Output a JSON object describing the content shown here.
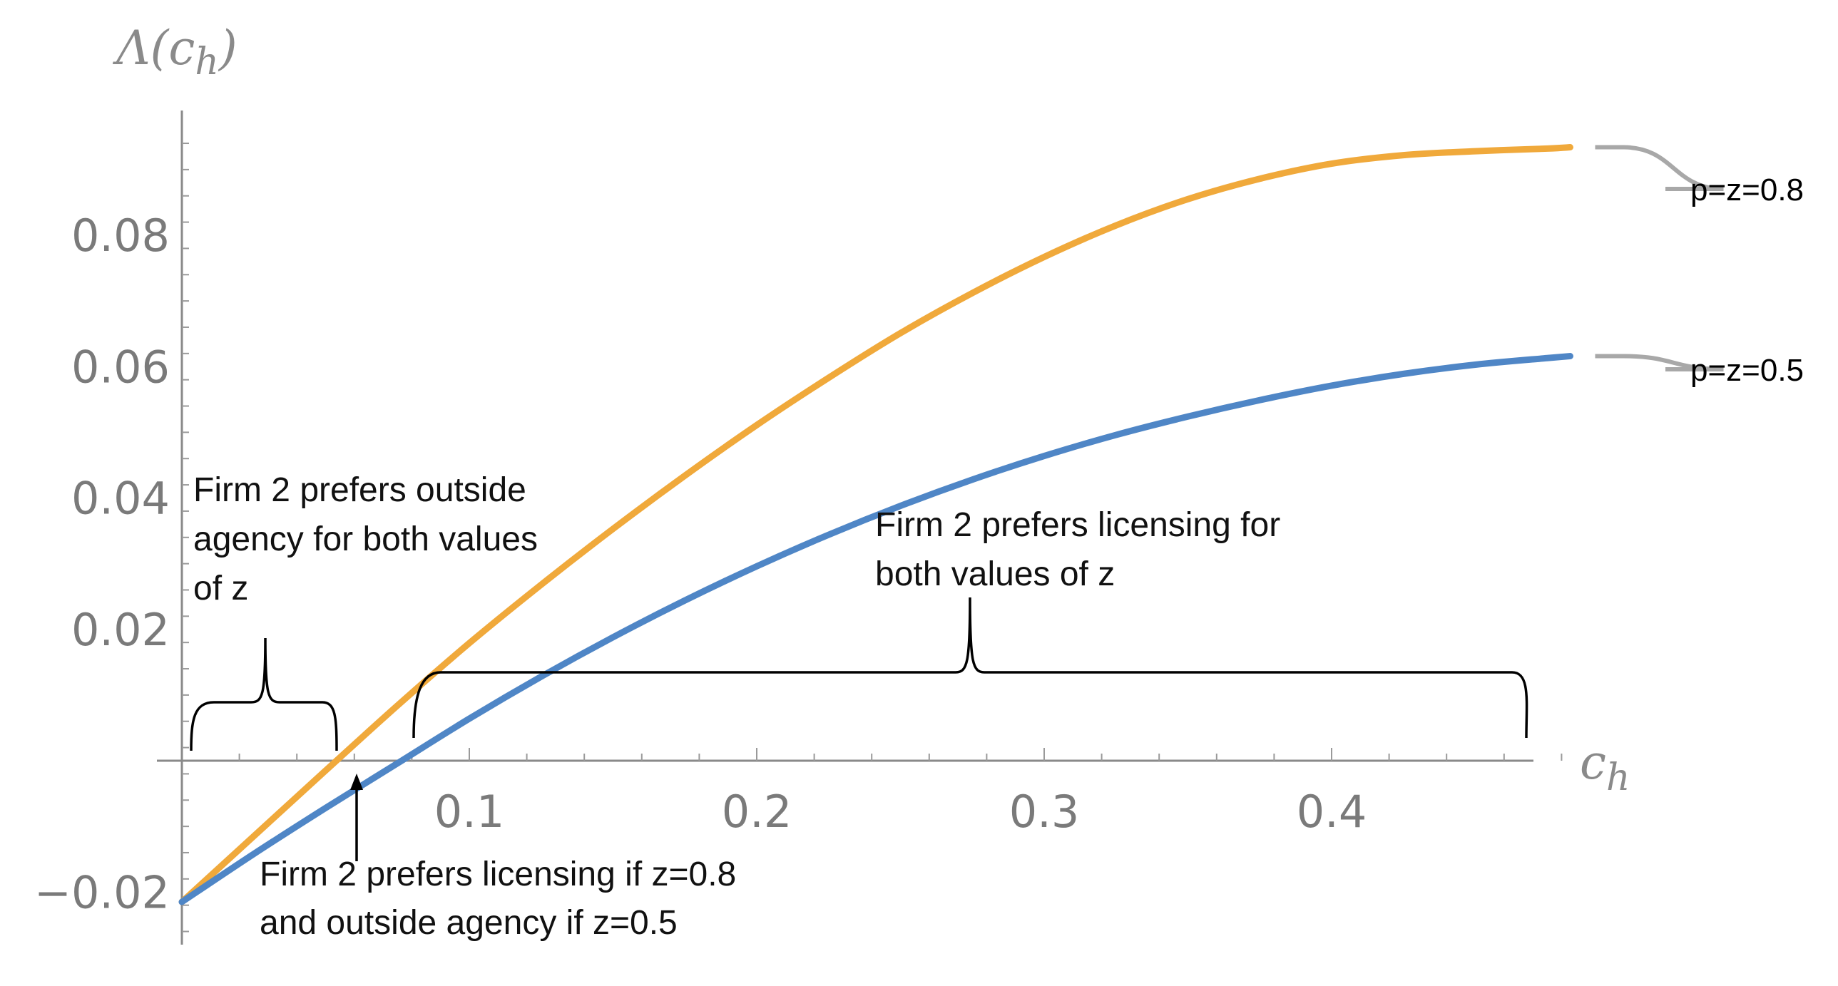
{
  "chart_data": {
    "type": "line",
    "title": "",
    "xlabel": {
      "main": "c",
      "sub": "h"
    },
    "ylabel": {
      "main": "Λ(c",
      "sub": "h",
      "close": ")"
    },
    "xlim": [
      0,
      0.49
    ],
    "ylim": [
      -0.028,
      0.098
    ],
    "x_ticks": [
      0.1,
      0.2,
      0.3,
      0.4
    ],
    "x_tick_labels": [
      "0.1",
      "0.2",
      "0.3",
      "0.4"
    ],
    "y_ticks": [
      -0.02,
      0.02,
      0.04,
      0.06,
      0.08
    ],
    "y_tick_labels": [
      "−0.02",
      "0.02",
      "0.04",
      "0.06",
      "0.08"
    ],
    "grid": false,
    "legend": "right",
    "series": [
      {
        "name": "p=z=0.8",
        "color": "#f0a93b",
        "x": [
          0,
          0.025,
          0.05,
          0.075,
          0.1,
          0.125,
          0.15,
          0.175,
          0.2,
          0.225,
          0.25,
          0.275,
          0.3,
          0.325,
          0.35,
          0.375,
          0.4,
          0.425,
          0.45,
          0.475,
          0.483
        ],
        "y": [
          -0.0215,
          -0.0115,
          -0.0015,
          0.0084,
          0.0179,
          0.0268,
          0.0353,
          0.0434,
          0.0511,
          0.0583,
          0.0651,
          0.0712,
          0.0767,
          0.0815,
          0.0855,
          0.0886,
          0.0909,
          0.0922,
          0.0928,
          0.0932,
          0.0934
        ]
      },
      {
        "name": "p=z=0.5",
        "color": "#4f86c6",
        "x": [
          0,
          0.025,
          0.05,
          0.075,
          0.1,
          0.125,
          0.15,
          0.175,
          0.2,
          0.225,
          0.25,
          0.275,
          0.3,
          0.325,
          0.35,
          0.375,
          0.4,
          0.425,
          0.45,
          0.475,
          0.483
        ],
        "y": [
          -0.0215,
          -0.0142,
          -0.0072,
          -0.0004,
          0.0064,
          0.0128,
          0.0188,
          0.0244,
          0.0296,
          0.0344,
          0.0388,
          0.0428,
          0.0464,
          0.0496,
          0.0524,
          0.0549,
          0.0571,
          0.0589,
          0.0603,
          0.0613,
          0.0616
        ]
      }
    ],
    "annotations": [
      {
        "lines": [
          "Firm 2 prefers outside",
          "agency for both values",
          "of z"
        ]
      },
      {
        "lines": [
          "Firm 2 prefers licensing for",
          "both values of z"
        ]
      },
      {
        "lines": [
          "Firm 2 prefers licensing if z=0.8",
          "and outside agency if z=0.5"
        ]
      }
    ]
  }
}
